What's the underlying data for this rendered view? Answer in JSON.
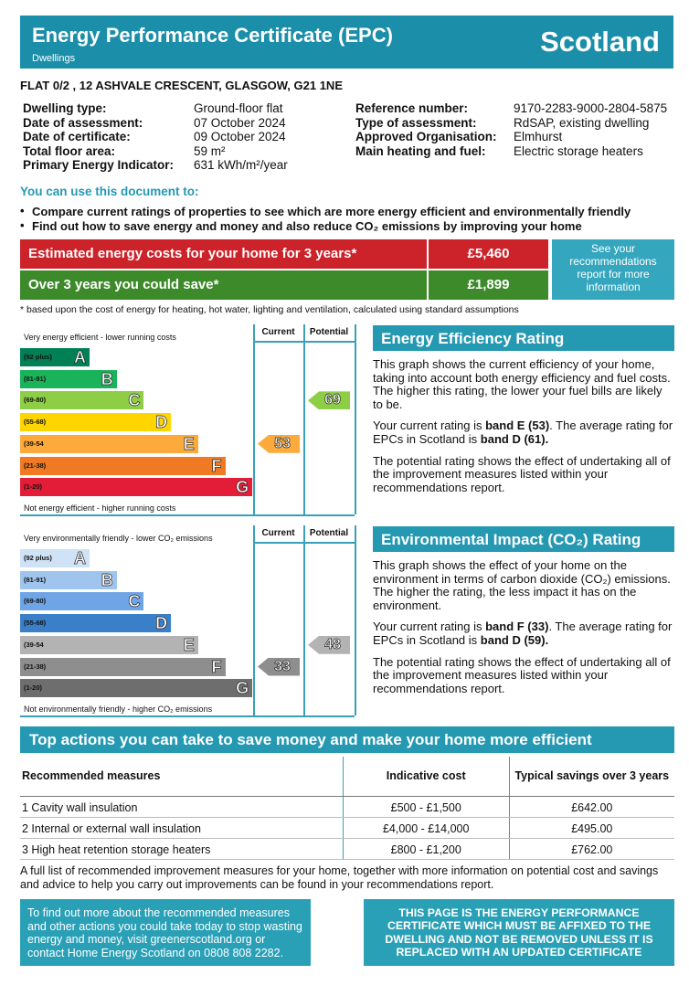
{
  "header": {
    "title": "Energy Performance Certificate (EPC)",
    "subtitle": "Dwellings",
    "country": "Scotland"
  },
  "address": "FLAT 0/2 , 12 ASHVALE CRESCENT, GLASGOW, G21 1NE",
  "details": {
    "left": [
      [
        "Dwelling type:",
        "Ground-floor flat"
      ],
      [
        "Date of assessment:",
        "07 October 2024"
      ],
      [
        "Date of certificate:",
        "09 October 2024"
      ],
      [
        "Total floor area:",
        "59 m²"
      ],
      [
        "Primary Energy Indicator:",
        "631 kWh/m²/year"
      ]
    ],
    "right": [
      [
        "Reference number:",
        "9170-2283-9000-2804-5875"
      ],
      [
        "Type of assessment:",
        "RdSAP, existing dwelling"
      ],
      [
        "Approved Organisation:",
        "Elmhurst"
      ],
      [
        "Main heating and fuel:",
        "Electric storage heaters"
      ]
    ]
  },
  "uses": {
    "heading": "You can use this document to:",
    "items": [
      "Compare current ratings of properties to see which are more energy efficient and environmentally friendly",
      "Find out how to save energy and money and also reduce CO₂ emissions by improving your home"
    ]
  },
  "costs": {
    "rows": [
      [
        "Estimated energy costs for your home for 3 years*",
        "£5,460"
      ],
      [
        "Over 3 years you could save*",
        "£1,899"
      ]
    ],
    "side_note": "See your recommendations report for more information",
    "footnote": "* based upon the cost of energy for heating, hot water, lighting and ventilation, calculated using standard assumptions"
  },
  "ratings": [
    {
      "top_label": "Very energy efficient - lower running costs",
      "bottom_label": "Not energy efficient - higher running costs",
      "columns": [
        "Current",
        "Potential"
      ],
      "bands": [
        {
          "range": "(92 plus)",
          "letter": "A",
          "color": "#008054"
        },
        {
          "range": "(81-91)",
          "letter": "B",
          "color": "#19b459"
        },
        {
          "range": "(69-80)",
          "letter": "C",
          "color": "#8dce46"
        },
        {
          "range": "(55-68)",
          "letter": "D",
          "color": "#ffd500"
        },
        {
          "range": "(39-54",
          "letter": "E",
          "color": "#fcaa3c"
        },
        {
          "range": "(21-38)",
          "letter": "F",
          "color": "#ef7a23"
        },
        {
          "range": "(1-20)",
          "letter": "G",
          "color": "#e31d38"
        }
      ],
      "current": 53,
      "potential": 69,
      "heading": "Energy Efficiency Rating",
      "paragraphs": [
        [
          "This graph shows the current efficiency of your home, taking into account both energy efficiency and fuel costs. The higher this rating, the lower your fuel bills are likely to be."
        ],
        [
          "Your current rating is ",
          "band E (53)",
          ". The average rating for EPCs in Scotland is ",
          "band D (61)."
        ],
        [
          "The potential rating shows the effect of undertaking all of the improvement measures listed within your recommendations report."
        ]
      ]
    },
    {
      "top_label": "Very environmentally friendly - lower CO₂ emissions",
      "bottom_label": "Not environmentally friendly - higher CO₂ emissions",
      "columns": [
        "Current",
        "Potential"
      ],
      "bands": [
        {
          "range": "(92 plus)",
          "letter": "A",
          "color": "#cfe2f6"
        },
        {
          "range": "(81-91)",
          "letter": "B",
          "color": "#9fc5ee"
        },
        {
          "range": "(69-80)",
          "letter": "C",
          "color": "#6fa5e6"
        },
        {
          "range": "(55-68)",
          "letter": "D",
          "color": "#3b7fc9"
        },
        {
          "range": "(39-54",
          "letter": "E",
          "color": "#b3b3b3"
        },
        {
          "range": "(21-38)",
          "letter": "F",
          "color": "#8e8e8e"
        },
        {
          "range": "(1-20)",
          "letter": "G",
          "color": "#6e6e6e"
        }
      ],
      "current": 33,
      "potential": 48,
      "heading": "Environmental Impact (CO₂) Rating",
      "paragraphs": [
        [
          "This graph shows the effect of your home on the environment in terms of carbon dioxide (CO₂) emissions. The higher the rating, the less impact it has on the environment."
        ],
        [
          "Your current rating is ",
          "band F (33)",
          ". The average rating for EPCs in Scotland is ",
          "band D (59)."
        ],
        [
          "The potential rating shows the effect of undertaking all of the improvement measures listed within your recommendations report."
        ]
      ]
    }
  ],
  "actions": {
    "heading": "Top actions you can take to save money and make your home more efficient",
    "headers": [
      "Recommended measures",
      "Indicative cost",
      "Typical savings over 3 years"
    ],
    "rows": [
      [
        "1 Cavity wall insulation",
        "£500 - £1,500",
        "£642.00"
      ],
      [
        "2 Internal or external wall insulation",
        "£4,000 - £14,000",
        "£495.00"
      ],
      [
        "3 High heat retention storage heaters",
        "£800 - £1,200",
        "£762.00"
      ]
    ],
    "note": "A full list of recommended improvement measures for your home, together with more information on potential cost and savings and advice to help you carry out improvements can be found in your recommendations report."
  },
  "footer": {
    "left": "To find out more about the recommended measures and other actions you could take today to stop wasting energy and money, visit greenerscotland.org or contact Home Energy Scotland on 0808 808 2282.",
    "right": "THIS PAGE IS THE ENERGY PERFORMANCE CERTIFICATE WHICH MUST BE AFFIXED TO THE DWELLING AND NOT BE REMOVED UNLESS IT IS REPLACED WITH AN UPDATED CERTIFICATE"
  }
}
